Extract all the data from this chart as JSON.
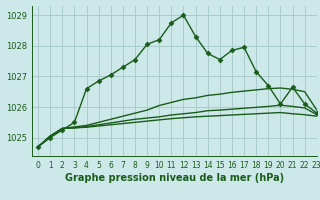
{
  "title": "Graphe pression niveau de la mer (hPa)",
  "background_color": "#cce8e8",
  "grid_color": "#aacccc",
  "line_color": "#1a5c1a",
  "xlim": [
    -0.5,
    23
  ],
  "ylim": [
    1024.4,
    1029.3
  ],
  "yticks": [
    1025,
    1026,
    1027,
    1028,
    1029
  ],
  "xticks": [
    0,
    1,
    2,
    3,
    4,
    5,
    6,
    7,
    8,
    9,
    10,
    11,
    12,
    13,
    14,
    15,
    16,
    17,
    18,
    19,
    20,
    21,
    22,
    23
  ],
  "series": [
    [
      1024.7,
      1025.0,
      1025.25,
      1025.5,
      1026.6,
      1026.85,
      1027.05,
      1027.3,
      1027.55,
      1028.05,
      1028.2,
      1028.75,
      1029.0,
      1028.3,
      1027.75,
      1027.55,
      1027.85,
      1027.95,
      1027.15,
      1026.7,
      1026.1,
      1026.65,
      1026.1,
      1025.8
    ],
    [
      1024.7,
      1025.05,
      1025.3,
      1025.35,
      1025.4,
      1025.5,
      1025.6,
      1025.7,
      1025.8,
      1025.9,
      1026.05,
      1026.15,
      1026.25,
      1026.3,
      1026.38,
      1026.42,
      1026.48,
      1026.52,
      1026.56,
      1026.6,
      1026.62,
      1026.58,
      1026.5,
      1025.9
    ],
    [
      1024.7,
      1025.05,
      1025.3,
      1025.32,
      1025.36,
      1025.42,
      1025.48,
      1025.54,
      1025.6,
      1025.64,
      1025.68,
      1025.74,
      1025.78,
      1025.82,
      1025.88,
      1025.9,
      1025.93,
      1025.96,
      1025.99,
      1026.02,
      1026.06,
      1026.02,
      1025.97,
      1025.75
    ],
    [
      1024.7,
      1025.05,
      1025.3,
      1025.32,
      1025.34,
      1025.38,
      1025.42,
      1025.46,
      1025.5,
      1025.54,
      1025.58,
      1025.62,
      1025.65,
      1025.68,
      1025.7,
      1025.72,
      1025.74,
      1025.76,
      1025.78,
      1025.8,
      1025.82,
      1025.78,
      1025.75,
      1025.7
    ]
  ],
  "marker": "D",
  "marker_size": 2.5,
  "line_width": 1.0,
  "title_fontsize": 7,
  "tick_fontsize": 5.5
}
